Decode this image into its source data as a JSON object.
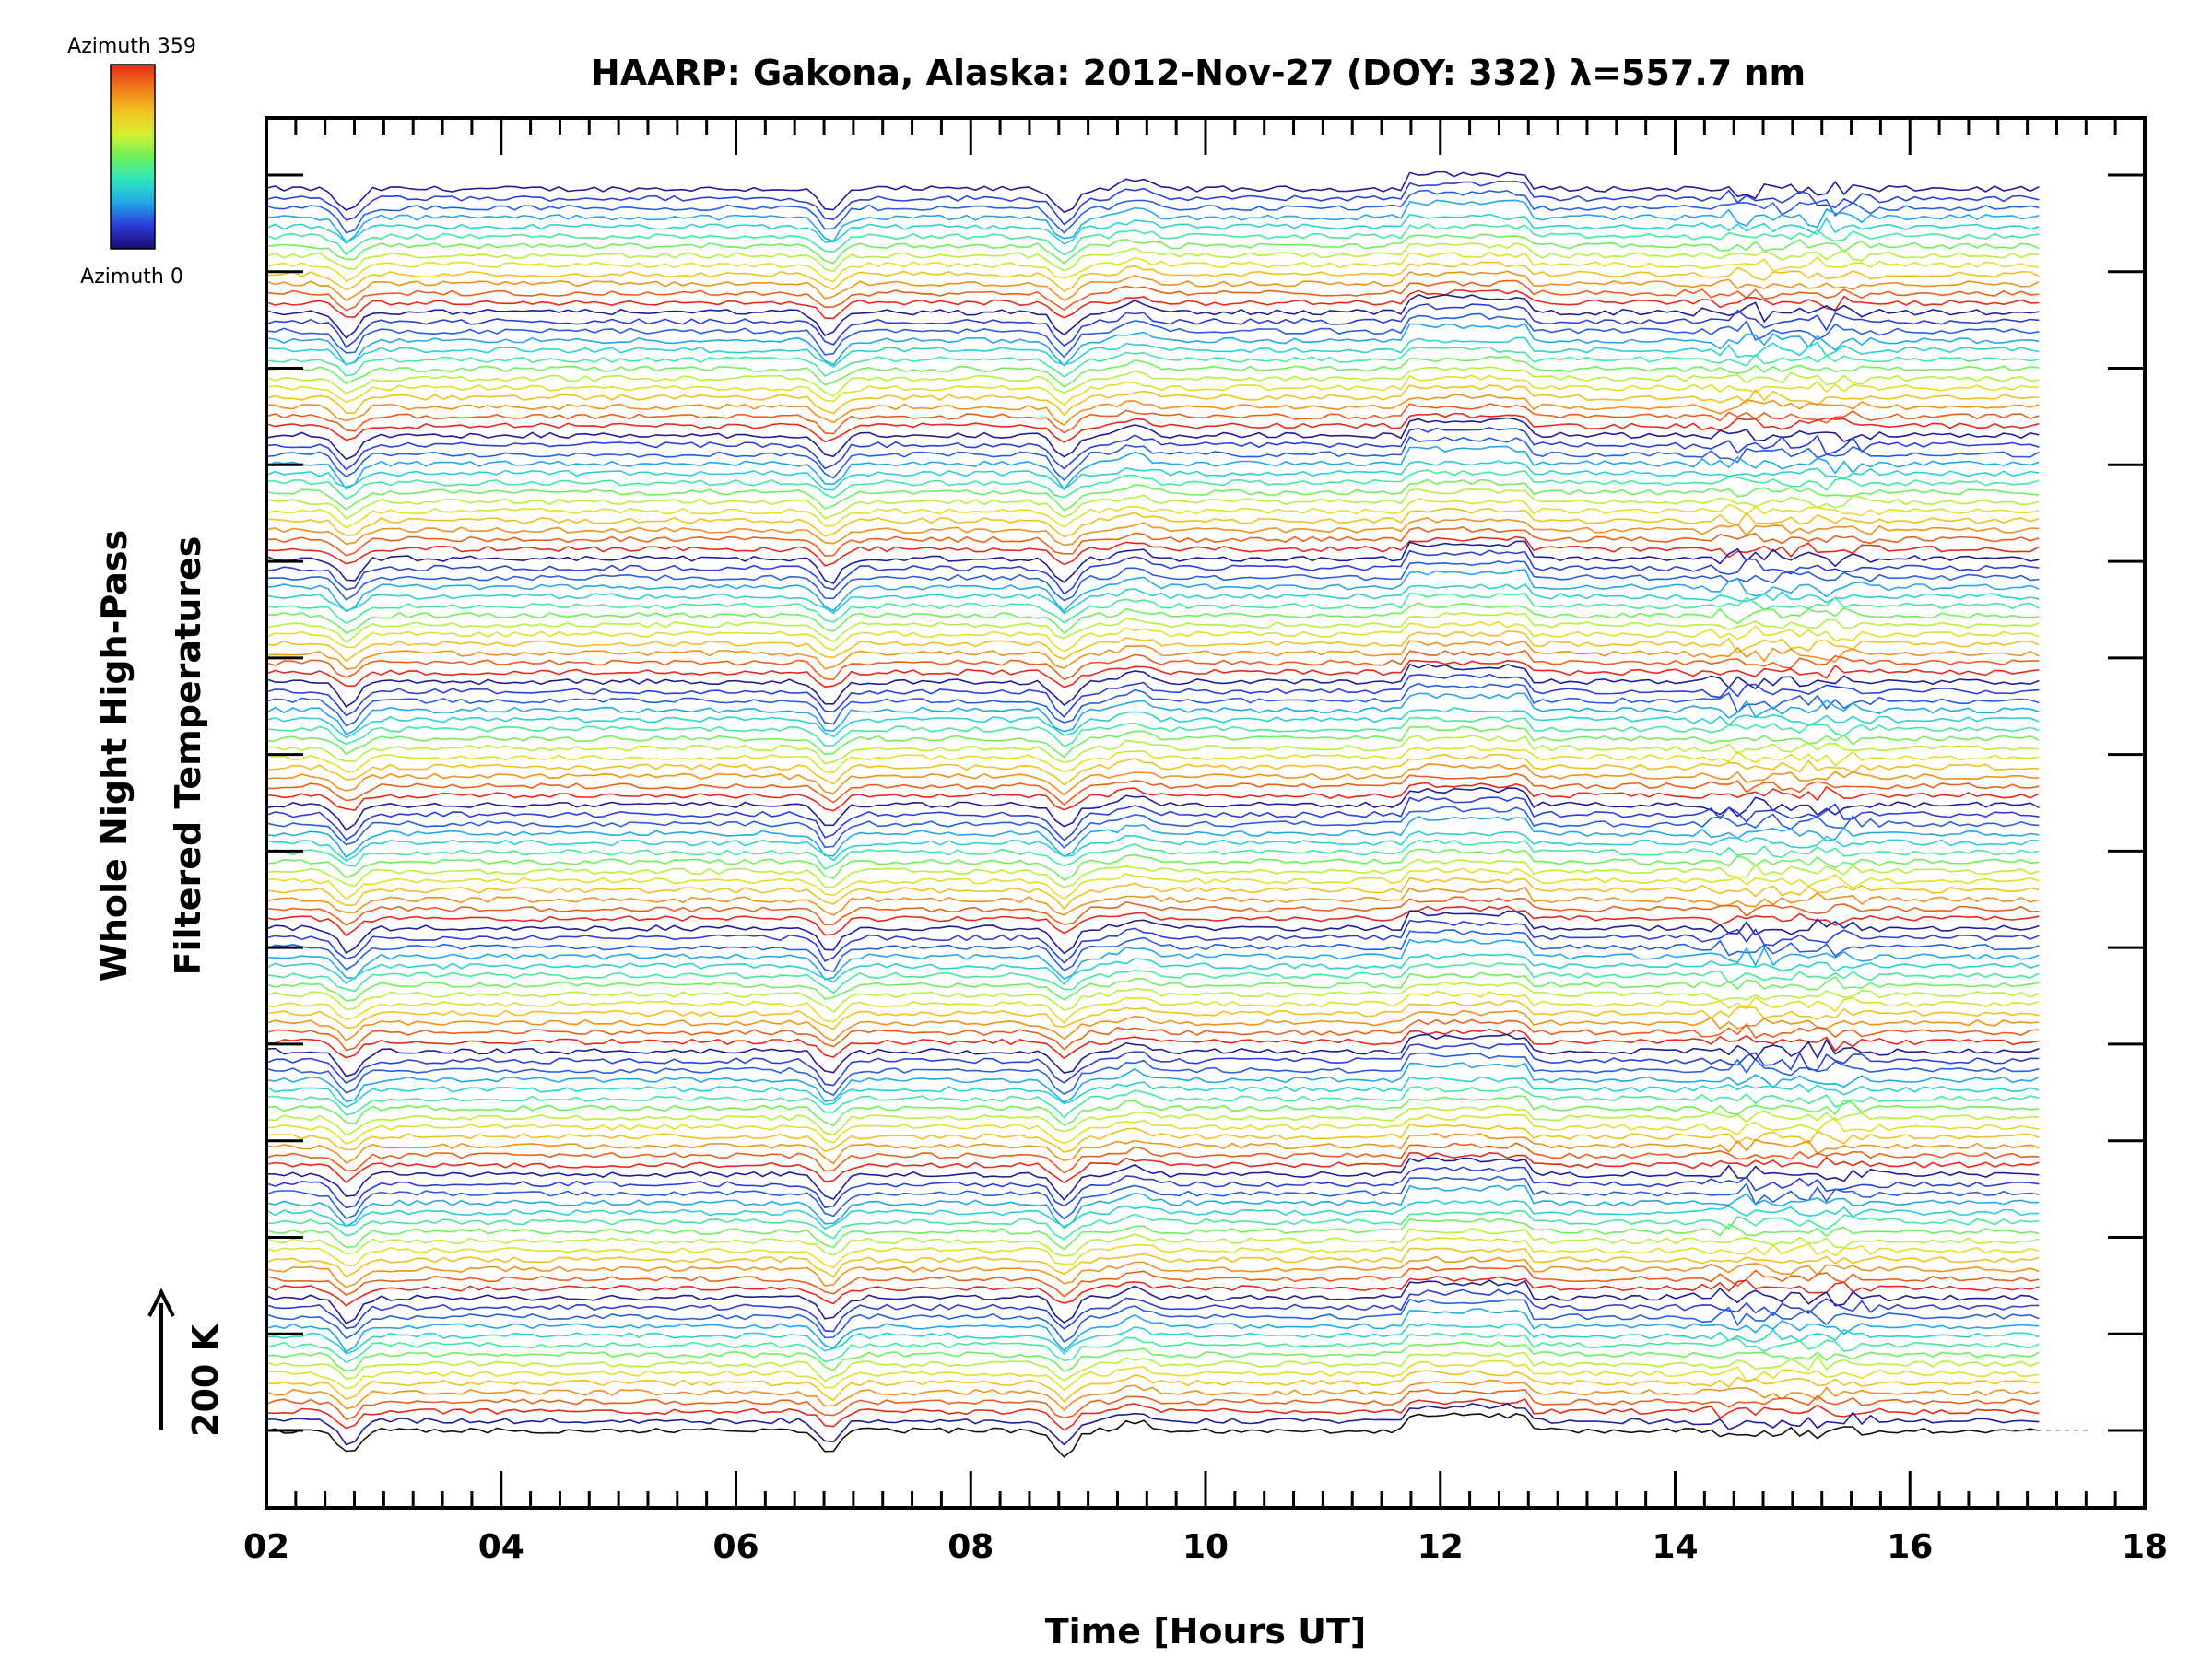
{
  "chart_data": {
    "type": "line",
    "title": "HAARP: Gakona,  Alaska: 2012-Nov-27 (DOY: 332) λ=557.7 nm",
    "xlabel": "Time [Hours UT]",
    "ylabel_line1": "Whole Night High-Pass",
    "ylabel_line2": "Filtered Temperatures",
    "xlim": [
      2,
      18
    ],
    "x_data_range": [
      2,
      17.1
    ],
    "x_ticks": [
      "02",
      "04",
      "06",
      "08",
      "10",
      "12",
      "14",
      "16",
      "18"
    ],
    "scale_bar": {
      "label": "200 K",
      "value_k": 200
    },
    "colorbar": {
      "top_label": "Azimuth 359",
      "bottom_label": "Azimuth 0",
      "colormap": "rainbow",
      "colors": [
        "#1a0a6e",
        "#2a3ad8",
        "#22a8e8",
        "#2ee6c0",
        "#6ef05a",
        "#d8f030",
        "#f0c020",
        "#f07a18",
        "#e8281a"
      ]
    },
    "series_count": 132,
    "azimuth_cycle_length": 13,
    "grid": false,
    "legend": "colorbar top-left",
    "features": [
      {
        "time_ut": 2.7,
        "type": "dip"
      },
      {
        "time_ut": 6.8,
        "type": "dip"
      },
      {
        "time_ut": 8.8,
        "type": "dip"
      },
      {
        "time_ut": 9.4,
        "type": "bump"
      },
      {
        "time_ut": 11.7,
        "type": "step-up"
      },
      {
        "time_ut": 12.7,
        "type": "step-down"
      },
      {
        "time_ut": 14.6,
        "type": "disturbance"
      },
      {
        "time_ut": 15.3,
        "type": "disturbance"
      }
    ]
  }
}
